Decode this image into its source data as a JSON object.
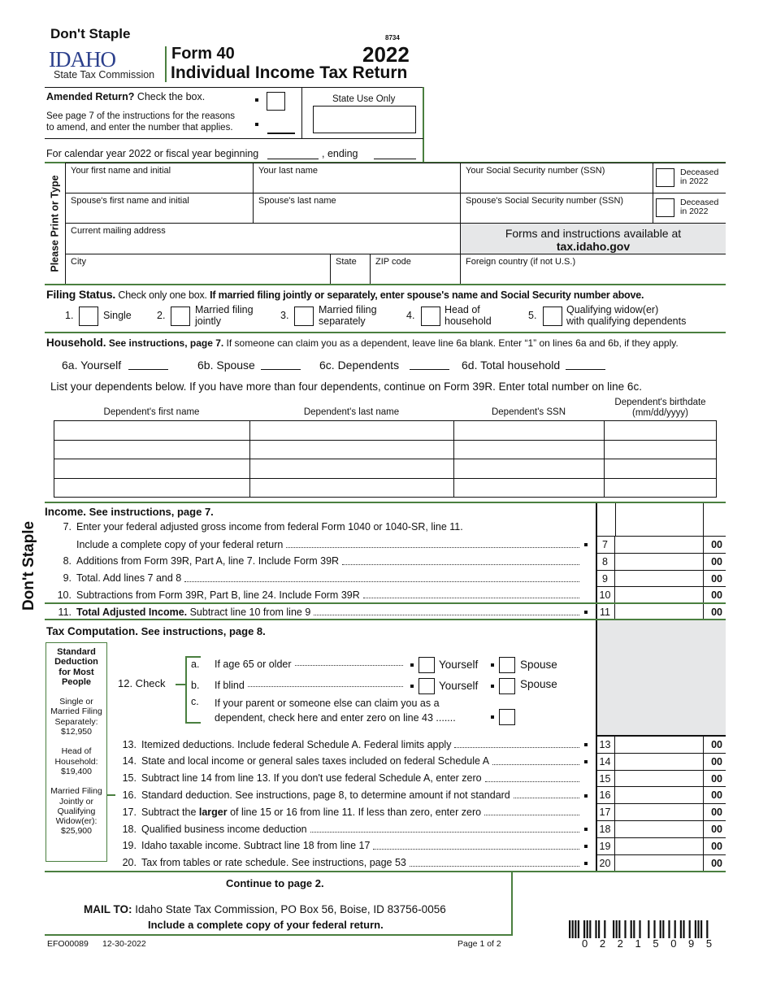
{
  "header": {
    "dont_staple": "Don't Staple",
    "logo": "IDAHO",
    "agency": "State Tax Commission",
    "form_number": "Form 40",
    "form_title": "Individual Income Tax Return",
    "code": "8734",
    "year": "2022"
  },
  "amended": {
    "title": "Amended Return?",
    "check": " Check the box.",
    "note1": "See page 7 of the instructions for the reasons",
    "note2": "to amend, and enter the number that applies.",
    "state_use": "State Use Only",
    "fiscal": "For calendar year 2022 or fiscal year beginning",
    "ending": ", ending"
  },
  "personal": {
    "side_label": "Please Print or Type",
    "first_name": "Your first name and initial",
    "last_name": "Your last name",
    "ssn": "Your Social Security number (SSN)",
    "deceased": "Deceased",
    "in2022": "in 2022",
    "sp_first": "Spouse's first name and initial",
    "sp_last": "Spouse's last name",
    "sp_ssn": "Spouse's Social Security number (SSN)",
    "address": "Current mailing address",
    "forms_info": "Forms and instructions available at",
    "website": "tax.idaho.gov",
    "city": "City",
    "state": "State",
    "zip": "ZIP code",
    "foreign": "Foreign country (if not U.S.)"
  },
  "filing": {
    "title": "Filing Status.",
    "check": " Check only one box. ",
    "bold_note": "If married filing jointly or separately, enter spouse's name and Social Security number above.",
    "options": [
      {
        "n": "1.",
        "l1": "Single",
        "l2": ""
      },
      {
        "n": "2.",
        "l1": "Married filing",
        "l2": "jointly"
      },
      {
        "n": "3.",
        "l1": "Married filing",
        "l2": "separately"
      },
      {
        "n": "4.",
        "l1": "Head of",
        "l2": "household"
      },
      {
        "n": "5.",
        "l1": "Qualifying widow(er)",
        "l2": "with qualifying dependents"
      }
    ]
  },
  "household": {
    "title": "Household.",
    "see": " See instructions, page 7.",
    "note": " If someone can claim you as a dependent, leave line 6a blank. Enter “1” on lines 6a and 6b, if they apply.",
    "a": "6a. Yourself",
    "b": "6b. Spouse",
    "c": "6c.  Dependents",
    "d": "6d. Total household",
    "list_note": "List your dependents below. If you have more than four dependents, continue on Form 39R. Enter total number on line 6c.",
    "cols": [
      "Dependent's first name",
      "Dependent's last name",
      "Dependent's SSN",
      "Dependent's birthdate",
      "(mm/dd/yyyy)"
    ]
  },
  "income": {
    "title": "Income.",
    "see": " See instructions, page 7.",
    "line7a": "7.",
    "line7text": "Enter your federal adjusted gross income from federal Form 1040 or 1040-SR, line 11.",
    "lines": [
      {
        "n": "",
        "pre": "Include a complete copy of your federal return",
        "bold": "",
        "post": "",
        "bullet": true,
        "box": "7"
      },
      {
        "n": "8.",
        "pre": "Additions from Form 39R, Part A, line 7. Include Form 39R",
        "bold": "",
        "post": "",
        "bullet": false,
        "box": "8"
      },
      {
        "n": "9.",
        "pre": "Total. Add lines 7 and 8",
        "bold": "",
        "post": "",
        "bullet": false,
        "box": "9"
      },
      {
        "n": "10.",
        "pre": "Subtractions from Form 39R, Part B, line 24. Include Form 39R",
        "bold": "",
        "post": "",
        "bullet": false,
        "box": "10"
      },
      {
        "n": "11.",
        "pre": "",
        "bold": "Total Adjusted Income.",
        "post": " Subtract line 10 from line 9",
        "bullet": true,
        "box": "11"
      }
    ],
    "cents": "00"
  },
  "tax": {
    "title": "Tax Computation.",
    "see": " See instructions, page 8.",
    "std": {
      "title": "Standard Deduction for Most People",
      "single": "Single or Married Filing Separately: $12,950",
      "hoh": "Head of Household: $19,400",
      "mfj": "Married Filing Jointly or Qualifying Widow(er): $25,900"
    },
    "check12": "12. Check",
    "a": "a.",
    "a_text": "If age 65 or older",
    "b": "b.",
    "b_text": "If blind",
    "c": "c.",
    "c_text1": "If your parent or someone else can claim you as a",
    "c_text2": "dependent, check here and enter zero on line 43 .......",
    "yourself": "Yourself",
    "spouse": "Spouse",
    "lines": [
      {
        "n": "13.",
        "pre": "Itemized deductions. Include federal Schedule A. Federal limits apply",
        "bold": "",
        "post": "",
        "bullet": true,
        "box": "13"
      },
      {
        "n": "14.",
        "pre": "State and local income or general sales taxes included on federal Schedule A",
        "bold": "",
        "post": "",
        "bullet": true,
        "box": "14"
      },
      {
        "n": "15.",
        "pre": "Subtract line 14 from line 13. If you don't use federal Schedule A, enter zero",
        "bold": "",
        "post": "",
        "bullet": false,
        "box": "15"
      },
      {
        "n": "16.",
        "pre": "Standard deduction. See instructions, page 8, to determine amount if not standard",
        "bold": "",
        "post": "",
        "bullet": true,
        "box": "16"
      },
      {
        "n": "17.",
        "pre": "Subtract the ",
        "bold": "larger",
        "post": " of line 15 or 16 from line 11. If less than zero, enter zero",
        "bullet": false,
        "box": "17"
      },
      {
        "n": "18.",
        "pre": "Qualified business income deduction",
        "bold": "",
        "post": "",
        "bullet": true,
        "box": "18"
      },
      {
        "n": "19.",
        "pre": "Idaho taxable income. Subtract line 18 from line 17",
        "bold": "",
        "post": "",
        "bullet": true,
        "box": "19"
      },
      {
        "n": "20.",
        "pre": "Tax from tables or rate schedule. See instructions, page 53",
        "bold": "",
        "post": "",
        "bullet": true,
        "box": "20"
      }
    ]
  },
  "footer": {
    "continue": "Continue to page 2.",
    "mail_to": "MAIL TO:",
    "address": " Idaho State Tax Commission, PO Box 56, Boise, ID 83756-0056",
    "include": "Include a complete copy of your federal return.",
    "code": "EFO00089",
    "date": "12-30-2022",
    "page": "Page 1 of 2",
    "barcode": "0 2 2 1 5 0 9 5"
  },
  "colors": {
    "accent": "#4a7f3f",
    "shade": "#e6e7e8",
    "logo": "#2b3f8c"
  }
}
